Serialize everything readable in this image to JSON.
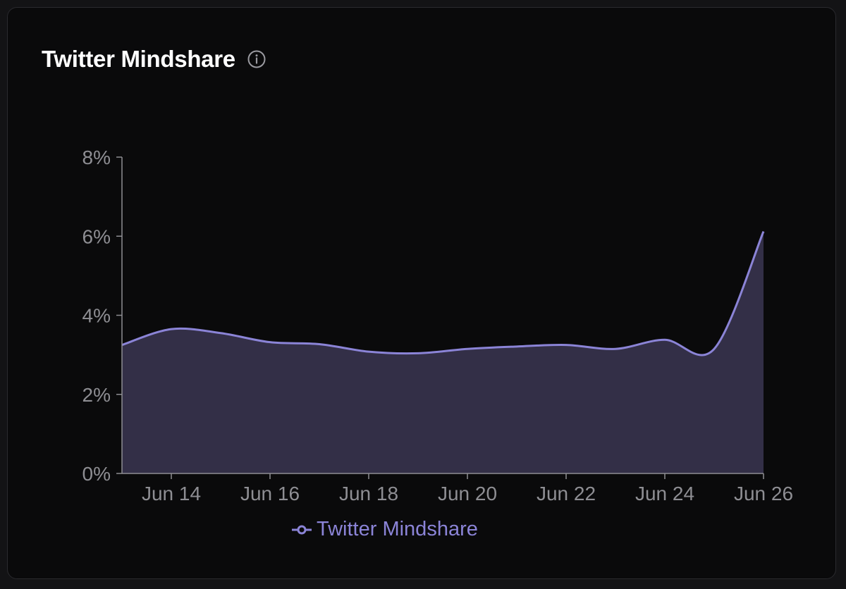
{
  "header": {
    "title": "Twitter Mindshare",
    "info_icon": "info-circle-icon"
  },
  "colors": {
    "line": "#8b84d7",
    "fill": "#332f47",
    "axis": "#8e8e93",
    "tick_text": "#8e8e93",
    "title": "#ffffff"
  },
  "chart_data": {
    "type": "area",
    "title": "",
    "xlabel": "",
    "ylabel": "",
    "x_ticks": [
      "Jun 14",
      "Jun 16",
      "Jun 18",
      "Jun 20",
      "Jun 22",
      "Jun 24",
      "Jun 26"
    ],
    "y_ticks": [
      "0%",
      "2%",
      "4%",
      "6%",
      "8%"
    ],
    "ylim": [
      0,
      8
    ],
    "xlim": [
      "2024-06-13",
      "2024-06-26"
    ],
    "grid": false,
    "legend_position": "bottom",
    "series": [
      {
        "name": "Twitter Mindshare",
        "x": [
          "Jun 13",
          "Jun 14",
          "Jun 15",
          "Jun 16",
          "Jun 17",
          "Jun 18",
          "Jun 19",
          "Jun 20",
          "Jun 21",
          "Jun 22",
          "Jun 23",
          "Jun 24",
          "Jun 25",
          "Jun 26"
        ],
        "values": [
          3.25,
          3.65,
          3.55,
          3.32,
          3.27,
          3.08,
          3.04,
          3.15,
          3.21,
          3.25,
          3.15,
          3.38,
          3.15,
          6.12
        ]
      }
    ]
  }
}
